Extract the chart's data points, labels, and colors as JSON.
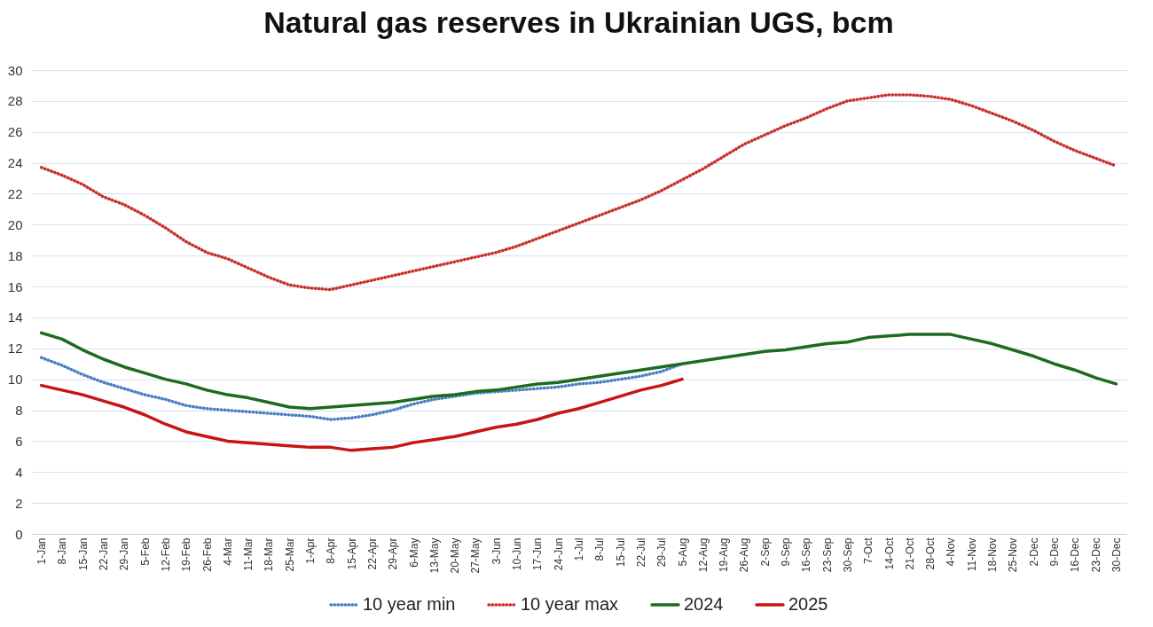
{
  "chart_data": {
    "type": "line",
    "title": "Natural gas reserves in Ukrainian UGS, bcm",
    "categories": [
      "1-Jan",
      "8-Jan",
      "15-Jan",
      "22-Jan",
      "29-Jan",
      "5-Feb",
      "12-Feb",
      "19-Feb",
      "26-Feb",
      "4-Mar",
      "11-Mar",
      "18-Mar",
      "25-Mar",
      "1-Apr",
      "8-Apr",
      "15-Apr",
      "22-Apr",
      "29-Apr",
      "6-May",
      "13-May",
      "20-May",
      "27-May",
      "3-Jun",
      "10-Jun",
      "17-Jun",
      "24-Jun",
      "1-Jul",
      "8-Jul",
      "15-Jul",
      "22-Jul",
      "29-Jul",
      "5-Aug",
      "12-Aug",
      "19-Aug",
      "26-Aug",
      "2-Sep",
      "9-Sep",
      "16-Sep",
      "23-Sep",
      "30-Sep",
      "7-Oct",
      "14-Oct",
      "21-Oct",
      "28-Oct",
      "4-Nov",
      "11-Nov",
      "18-Nov",
      "25-Nov",
      "2-Dec",
      "9-Dec",
      "16-Dec",
      "23-Dec",
      "30-Dec"
    ],
    "ylim": [
      0,
      30
    ],
    "yticks": [
      0,
      2,
      4,
      6,
      8,
      10,
      12,
      14,
      16,
      18,
      20,
      22,
      24,
      26,
      28,
      30
    ],
    "grid": "y",
    "legend": "bottom",
    "series": [
      {
        "name": "10 year min",
        "color": "#4a7ec4",
        "line_style": "dotted",
        "values": [
          11.4,
          10.9,
          10.3,
          9.8,
          9.4,
          9.0,
          8.7,
          8.3,
          8.1,
          8.0,
          7.9,
          7.8,
          7.7,
          7.6,
          7.4,
          7.5,
          7.7,
          8.0,
          8.4,
          8.7,
          8.9,
          9.1,
          9.2,
          9.3,
          9.4,
          9.5,
          9.7,
          9.8,
          10.0,
          10.2,
          10.5,
          11.0,
          null,
          null,
          null,
          null,
          null,
          null,
          null,
          null,
          null,
          null,
          null,
          null,
          null,
          null,
          null,
          null,
          null,
          null,
          null,
          null,
          null
        ]
      },
      {
        "name": "10 year max",
        "color": "#c8302c",
        "line_style": "dotted",
        "values": [
          23.7,
          23.2,
          22.6,
          21.8,
          21.3,
          20.6,
          19.8,
          18.9,
          18.2,
          17.8,
          17.2,
          16.6,
          16.1,
          15.9,
          15.8,
          16.1,
          16.4,
          16.7,
          17.0,
          17.3,
          17.6,
          17.9,
          18.2,
          18.6,
          19.1,
          19.6,
          20.1,
          20.6,
          21.1,
          21.6,
          22.2,
          22.9,
          23.6,
          24.4,
          25.2,
          25.8,
          26.4,
          26.9,
          27.5,
          28.0,
          28.2,
          28.4,
          28.4,
          28.3,
          28.1,
          27.7,
          27.2,
          26.7,
          26.1,
          25.4,
          24.8,
          24.3,
          23.8
        ]
      },
      {
        "name": "2024",
        "color": "#1e6b1e",
        "line_style": "solid",
        "values": [
          13.0,
          12.6,
          11.9,
          11.3,
          10.8,
          10.4,
          10.0,
          9.7,
          9.3,
          9.0,
          8.8,
          8.5,
          8.2,
          8.1,
          8.2,
          8.3,
          8.4,
          8.5,
          8.7,
          8.9,
          9.0,
          9.2,
          9.3,
          9.5,
          9.7,
          9.8,
          10.0,
          10.2,
          10.4,
          10.6,
          10.8,
          11.0,
          11.2,
          11.4,
          11.6,
          11.8,
          11.9,
          12.1,
          12.3,
          12.4,
          12.7,
          12.8,
          12.9,
          12.9,
          12.9,
          12.6,
          12.3,
          11.9,
          11.5,
          11.0,
          10.6,
          10.1,
          9.7
        ]
      },
      {
        "name": "2025",
        "color": "#c81414",
        "line_style": "solid",
        "values": [
          9.6,
          9.3,
          9.0,
          8.6,
          8.2,
          7.7,
          7.1,
          6.6,
          6.3,
          6.0,
          5.9,
          5.8,
          5.7,
          5.6,
          5.6,
          5.4,
          5.5,
          5.6,
          5.9,
          6.1,
          6.3,
          6.6,
          6.9,
          7.1,
          7.4,
          7.8,
          8.1,
          8.5,
          8.9,
          9.3,
          9.6,
          10.0,
          null,
          null,
          null,
          null,
          null,
          null,
          null,
          null,
          null,
          null,
          null,
          null,
          null,
          null,
          null,
          null,
          null,
          null,
          null,
          null,
          null
        ]
      }
    ]
  }
}
